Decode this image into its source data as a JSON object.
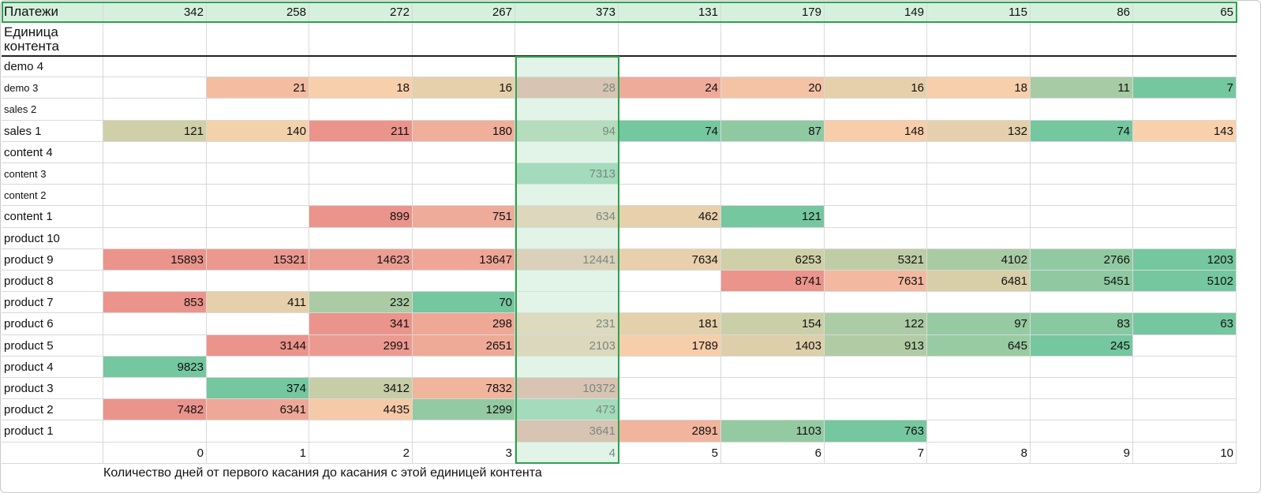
{
  "header": {
    "label": "Платежи",
    "values": [
      "342",
      "258",
      "272",
      "267",
      "373",
      "131",
      "179",
      "149",
      "115",
      "86",
      "65"
    ]
  },
  "unit_label": "Единица контента",
  "rows": [
    {
      "label": "demo 4",
      "values": [
        "",
        "",
        "",
        "",
        "",
        "",
        "",
        "",
        "",
        "",
        ""
      ]
    },
    {
      "label": "demo 3",
      "values": [
        "",
        "21",
        "18",
        "16",
        "28",
        "24",
        "20",
        "16",
        "18",
        "11",
        "7"
      ]
    },
    {
      "label": "sales 2",
      "values": [
        "",
        "",
        "",
        "",
        "",
        "",
        "",
        "",
        "",
        "",
        ""
      ]
    },
    {
      "label": "sales 1",
      "values": [
        "121",
        "140",
        "211",
        "180",
        "94",
        "74",
        "87",
        "148",
        "132",
        "74",
        "143"
      ]
    },
    {
      "label": "content 4",
      "values": [
        "",
        "",
        "",
        "",
        "",
        "",
        "",
        "",
        "",
        "",
        ""
      ]
    },
    {
      "label": "content 3",
      "values": [
        "",
        "",
        "",
        "",
        "7313",
        "",
        "",
        "",
        "",
        "",
        ""
      ]
    },
    {
      "label": "content 2",
      "values": [
        "",
        "",
        "",
        "",
        "",
        "",
        "",
        "",
        "",
        "",
        ""
      ]
    },
    {
      "label": "content 1",
      "values": [
        "",
        "",
        "899",
        "751",
        "634",
        "462",
        "121",
        "",
        "",
        "",
        ""
      ]
    },
    {
      "label": "product 10",
      "values": [
        "",
        "",
        "",
        "",
        "",
        "",
        "",
        "",
        "",
        "",
        ""
      ]
    },
    {
      "label": "product 9",
      "values": [
        "15893",
        "15321",
        "14623",
        "13647",
        "12441",
        "7634",
        "6253",
        "5321",
        "4102",
        "2766",
        "1203"
      ]
    },
    {
      "label": "product 8",
      "values": [
        "",
        "",
        "",
        "",
        "",
        "",
        "8741",
        "7631",
        "6481",
        "5451",
        "5102"
      ]
    },
    {
      "label": "product 7",
      "values": [
        "853",
        "411",
        "232",
        "70",
        "",
        "",
        "",
        "",
        "",
        "",
        ""
      ]
    },
    {
      "label": "product 6",
      "values": [
        "",
        "",
        "341",
        "298",
        "231",
        "181",
        "154",
        "122",
        "97",
        "83",
        "63"
      ]
    },
    {
      "label": "product 5",
      "values": [
        "",
        "3144",
        "2991",
        "2651",
        "2103",
        "1789",
        "1403",
        "913",
        "645",
        "245",
        ""
      ]
    },
    {
      "label": "product 4",
      "values": [
        "9823",
        "",
        "",
        "",
        "",
        "",
        "",
        "",
        "",
        "",
        ""
      ]
    },
    {
      "label": "product 3",
      "values": [
        "",
        "374",
        "3412",
        "7832",
        "10372",
        "",
        "",
        "",
        "",
        "",
        ""
      ]
    },
    {
      "label": "product 2",
      "values": [
        "7482",
        "6341",
        "4435",
        "1299",
        "473",
        "",
        "",
        "",
        "",
        "",
        ""
      ]
    },
    {
      "label": "product 1",
      "values": [
        "",
        "",
        "",
        "",
        "3641",
        "2891",
        "1103",
        "763",
        "",
        "",
        ""
      ]
    }
  ],
  "x_axis": [
    "0",
    "1",
    "2",
    "3",
    "4",
    "5",
    "6",
    "7",
    "8",
    "9",
    "10"
  ],
  "footer": "Количество дней от первого касания до касания с этой единицей контента",
  "colors": {
    "header_bg": "#d6f0de",
    "highlight_border": "#2fa14e",
    "low_value": "#57bb8a",
    "mid_value": "#f6c89a",
    "high_value": "#e67c73"
  }
}
